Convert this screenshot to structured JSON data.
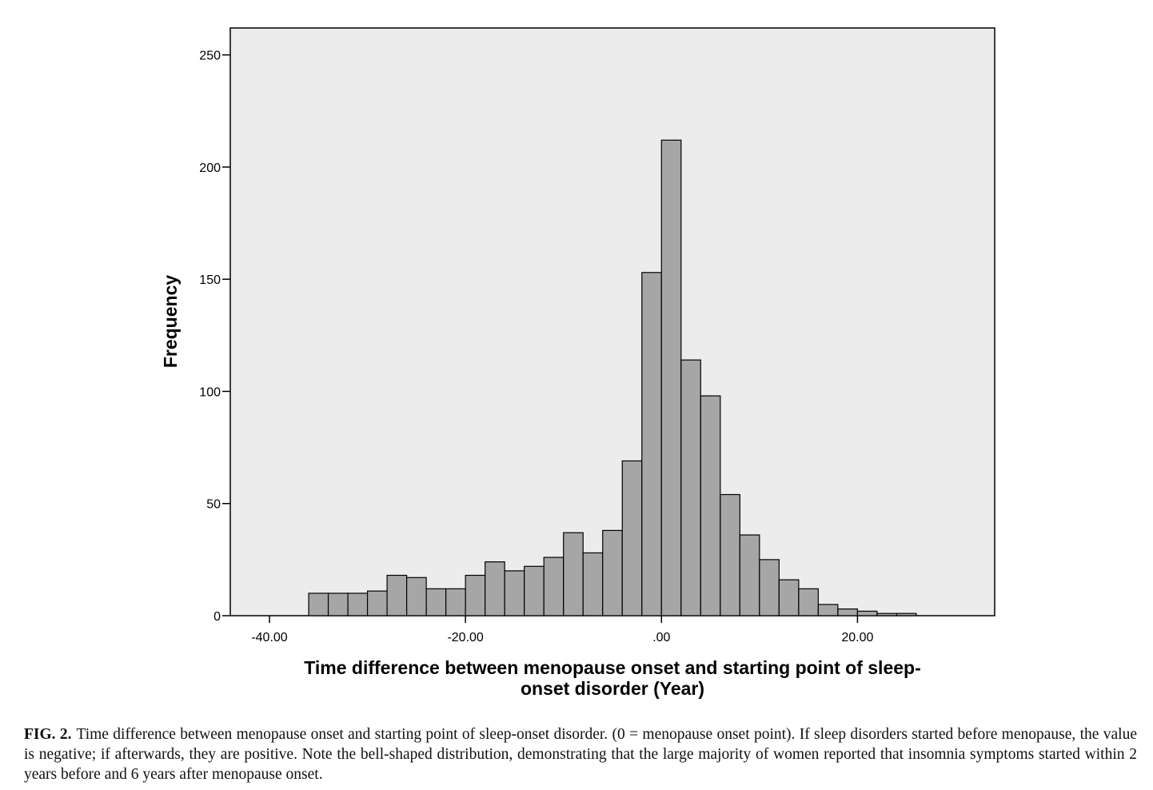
{
  "chart_data": {
    "type": "bar",
    "subtype": "histogram",
    "title": "",
    "xlabel": "Time difference between menopause onset and starting point of sleep-onset disorder (Year)",
    "xlabel_lines": [
      "Time difference between menopause onset and starting point of sleep-",
      "onset disorder (Year)"
    ],
    "ylabel": "Frequency",
    "xlim": [
      -44,
      34
    ],
    "ylim": [
      0,
      262
    ],
    "x_ticks": [
      -40,
      -20,
      0,
      20
    ],
    "x_tick_labels": [
      "-40.00",
      "-20.00",
      ".00",
      "20.00"
    ],
    "y_ticks": [
      0,
      50,
      100,
      150,
      200,
      250
    ],
    "y_tick_labels": [
      "0",
      "50",
      "100",
      "150",
      "200",
      "250"
    ],
    "grid": false,
    "legend": "none",
    "bin_width": 2,
    "bins": [
      {
        "start": -36,
        "end": -34,
        "value": 10
      },
      {
        "start": -34,
        "end": -32,
        "value": 10
      },
      {
        "start": -32,
        "end": -30,
        "value": 10
      },
      {
        "start": -30,
        "end": -28,
        "value": 11
      },
      {
        "start": -28,
        "end": -26,
        "value": 18
      },
      {
        "start": -26,
        "end": -24,
        "value": 17
      },
      {
        "start": -24,
        "end": -22,
        "value": 12
      },
      {
        "start": -22,
        "end": -20,
        "value": 12
      },
      {
        "start": -20,
        "end": -18,
        "value": 18
      },
      {
        "start": -18,
        "end": -16,
        "value": 24
      },
      {
        "start": -16,
        "end": -14,
        "value": 20
      },
      {
        "start": -14,
        "end": -12,
        "value": 22
      },
      {
        "start": -12,
        "end": -10,
        "value": 26
      },
      {
        "start": -10,
        "end": -8,
        "value": 37
      },
      {
        "start": -8,
        "end": -6,
        "value": 28
      },
      {
        "start": -6,
        "end": -4,
        "value": 38
      },
      {
        "start": -4,
        "end": -2,
        "value": 69
      },
      {
        "start": -2,
        "end": 0,
        "value": 153
      },
      {
        "start": 0,
        "end": 2,
        "value": 212
      },
      {
        "start": 2,
        "end": 4,
        "value": 114
      },
      {
        "start": 4,
        "end": 6,
        "value": 98
      },
      {
        "start": 6,
        "end": 8,
        "value": 54
      },
      {
        "start": 8,
        "end": 10,
        "value": 36
      },
      {
        "start": 10,
        "end": 12,
        "value": 25
      },
      {
        "start": 12,
        "end": 14,
        "value": 16
      },
      {
        "start": 14,
        "end": 16,
        "value": 12
      },
      {
        "start": 16,
        "end": 18,
        "value": 5
      },
      {
        "start": 18,
        "end": 20,
        "value": 3
      },
      {
        "start": 20,
        "end": 22,
        "value": 2
      },
      {
        "start": 22,
        "end": 24,
        "value": 1
      },
      {
        "start": 24,
        "end": 26,
        "value": 1
      }
    ],
    "colors": {
      "bar_fill": "#a6a6a6",
      "bar_stroke": "#000000",
      "plot_background": "#ececec"
    }
  },
  "caption": {
    "label": "FIG. 2.",
    "text": "Time difference between menopause onset and starting point of sleep-onset disorder. (0 = menopause onset point). If sleep disorders started before menopause, the value is negative; if afterwards, they are positive. Note the bell-shaped distribution, demonstrating that the large majority of women reported that insomnia symptoms started within 2 years before and 6 years after menopause onset."
  }
}
